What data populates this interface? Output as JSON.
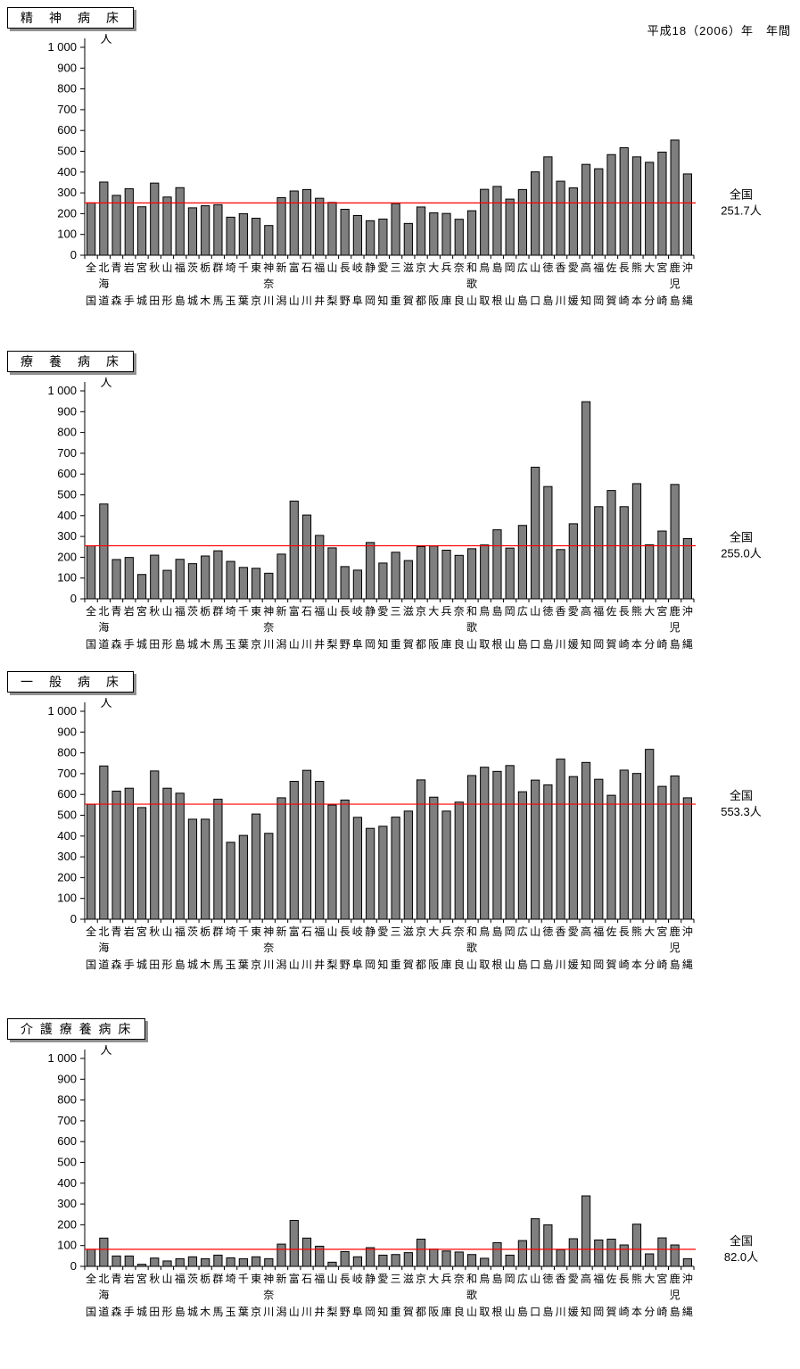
{
  "header": {
    "period": "平成18（2006）年　年間"
  },
  "unit_label": "人",
  "national_label": "全国",
  "colors": {
    "bar_fill": "#7f7f7f",
    "bar_stroke": "#000000",
    "average_line": "#ff0000"
  },
  "categories": [
    "全国",
    "北海道",
    "青森",
    "岩手",
    "宮城",
    "秋田",
    "山形",
    "福島",
    "茨城",
    "栃木",
    "群馬",
    "埼玉",
    "千葉",
    "東京",
    "神奈川",
    "新潟",
    "富山",
    "石川",
    "福井",
    "山梨",
    "長野",
    "岐阜",
    "静岡",
    "愛知",
    "三重",
    "滋賀",
    "京都",
    "大阪",
    "兵庫",
    "奈良",
    "和歌山",
    "鳥取",
    "島根",
    "岡山",
    "広島",
    "山口",
    "徳島",
    "香川",
    "愛媛",
    "高知",
    "福岡",
    "佐賀",
    "長崎",
    "熊本",
    "大分",
    "宮崎",
    "鹿児島",
    "沖縄"
  ],
  "chart_data": [
    {
      "type": "bar",
      "title": "精神病床",
      "title_display": "精　神　病　床",
      "ylabel_unit": "人",
      "ylim": [
        0,
        1000
      ],
      "ytick_step": 100,
      "grid": false,
      "national_average": 251.7,
      "annotation_label": "全国",
      "annotation_value": "251.7人",
      "values": [
        252,
        352,
        288,
        320,
        233,
        347,
        280,
        325,
        228,
        238,
        243,
        183,
        200,
        178,
        143,
        277,
        309,
        316,
        274,
        254,
        221,
        191,
        166,
        174,
        249,
        153,
        232,
        204,
        201,
        173,
        214,
        317,
        331,
        270,
        316,
        401,
        473,
        356,
        324,
        437,
        416,
        484,
        517,
        473,
        447,
        496,
        554,
        391
      ]
    },
    {
      "type": "bar",
      "title": "療養病床",
      "title_display": "療　養　病　床",
      "ylabel_unit": "人",
      "ylim": [
        0,
        1000
      ],
      "ytick_step": 100,
      "grid": false,
      "national_average": 255.0,
      "annotation_label": "全国",
      "annotation_value": "255.0人",
      "values": [
        255,
        456,
        189,
        199,
        117,
        210,
        137,
        190,
        169,
        206,
        231,
        180,
        151,
        147,
        123,
        215,
        470,
        403,
        305,
        245,
        155,
        138,
        271,
        172,
        224,
        184,
        251,
        254,
        234,
        209,
        241,
        259,
        332,
        244,
        353,
        633,
        540,
        237,
        361,
        948,
        443,
        521,
        443,
        554,
        260,
        326,
        550,
        290
      ]
    },
    {
      "type": "bar",
      "title": "一般病床",
      "title_display": "一　般　病　床",
      "ylabel_unit": "人",
      "ylim": [
        0,
        1000
      ],
      "ytick_step": 100,
      "grid": false,
      "national_average": 553.3,
      "annotation_label": "全国",
      "annotation_value": "553.3人",
      "values": [
        553,
        737,
        616,
        630,
        537,
        713,
        630,
        606,
        481,
        481,
        577,
        370,
        403,
        506,
        413,
        584,
        663,
        716,
        663,
        549,
        573,
        490,
        437,
        447,
        491,
        520,
        670,
        587,
        520,
        563,
        691,
        731,
        711,
        739,
        613,
        669,
        646,
        770,
        686,
        754,
        673,
        596,
        717,
        701,
        817,
        639,
        689,
        584
      ]
    },
    {
      "type": "bar",
      "title": "介護療養病床",
      "title_display": "介 護 療 養 病 床",
      "ylabel_unit": "人",
      "ylim": [
        0,
        1000
      ],
      "ytick_step": 100,
      "grid": false,
      "national_average": 82.0,
      "annotation_label": "全国",
      "annotation_value": "82.0人",
      "values": [
        82,
        136,
        50,
        50,
        10,
        40,
        26,
        37,
        46,
        37,
        54,
        41,
        37,
        46,
        37,
        107,
        221,
        136,
        97,
        20,
        71,
        46,
        90,
        54,
        57,
        66,
        131,
        83,
        74,
        69,
        57,
        39,
        114,
        54,
        124,
        229,
        200,
        80,
        133,
        339,
        127,
        131,
        103,
        203,
        60,
        137,
        103,
        37
      ]
    }
  ]
}
